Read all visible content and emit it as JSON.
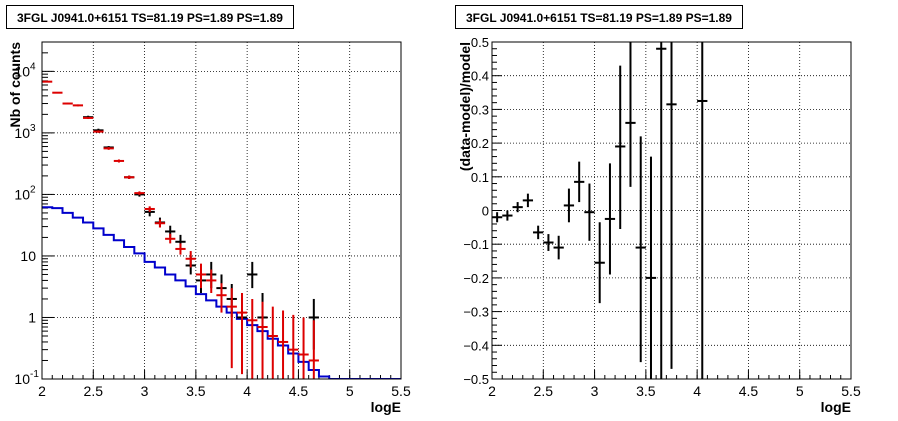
{
  "chart_data": [
    {
      "type": "line",
      "title": "3FGL J0941.0+6151 TS=81.19 PS=1.89 PS=1.89",
      "xlabel": "logE",
      "ylabel": "Nb of counts",
      "xlim": [
        2,
        5.5
      ],
      "ylim": [
        0.1,
        30000
      ],
      "yscale": "log",
      "grid": true,
      "x_ticks": [
        "2",
        "2.5",
        "3",
        "3.5",
        "4",
        "4.5",
        "5",
        "5.5"
      ],
      "y_ticks": [
        {
          "v": 0.1,
          "t": "10",
          "e": "-1"
        },
        {
          "v": 1,
          "t": "1",
          "e": ""
        },
        {
          "v": 10,
          "t": "10",
          "e": ""
        },
        {
          "v": 100,
          "t": "10",
          "e": "2"
        },
        {
          "v": 1000,
          "t": "10",
          "e": "3"
        },
        {
          "v": 10000,
          "t": "10",
          "e": "4"
        }
      ],
      "series": [
        {
          "color": "#0000cc",
          "kind": "step",
          "edges": [
            2.0,
            2.1,
            2.2,
            2.3,
            2.4,
            2.5,
            2.6,
            2.7,
            2.8,
            2.9,
            3.0,
            3.1,
            3.2,
            3.3,
            3.4,
            3.5,
            3.6,
            3.7,
            3.8,
            3.9,
            4.0,
            4.1,
            4.2,
            4.3,
            4.4,
            4.5,
            4.6,
            4.7,
            4.8,
            4.9,
            5.0,
            5.1,
            5.2,
            5.3,
            5.4,
            5.5
          ],
          "values": [
            62,
            60,
            50,
            42,
            35,
            28,
            22,
            18,
            14,
            11,
            8,
            6.5,
            5,
            4,
            3.2,
            2.4,
            1.9,
            1.5,
            1.2,
            0.95,
            0.75,
            0.6,
            0.45,
            0.35,
            0.26,
            0.19,
            0.14,
            0.11,
            0.1,
            0.1,
            0.1,
            0.1,
            0.1,
            0.1,
            0.1
          ]
        },
        {
          "color": "#000000",
          "kind": "errorbar",
          "points": [
            [
              2.45,
              1800,
              1700,
              1900
            ],
            [
              2.55,
              1100,
              1030,
              1170
            ],
            [
              2.65,
              580,
              550,
              610
            ],
            [
              2.85,
              190,
              178,
              202
            ],
            [
              2.95,
              100,
              92,
              108
            ],
            [
              3.05,
              52,
              44,
              61
            ],
            [
              3.15,
              35,
              29,
              42
            ],
            [
              3.25,
              25,
              20,
              31
            ],
            [
              3.35,
              17,
              13,
              22
            ],
            [
              3.45,
              7,
              5,
              10
            ],
            [
              3.55,
              4,
              2.5,
              6
            ],
            [
              3.65,
              5,
              3,
              8
            ],
            [
              3.75,
              3,
              1.7,
              5
            ],
            [
              3.85,
              2,
              1,
              3.5
            ],
            [
              3.95,
              1,
              0.3,
              2.5
            ],
            [
              4.05,
              5,
              3,
              8
            ],
            [
              4.15,
              1,
              0.3,
              2.5
            ],
            [
              4.65,
              1,
              0.3,
              2
            ]
          ]
        },
        {
          "color": "#dd0000",
          "kind": "errorbar",
          "points": [
            [
              2.05,
              6800,
              6600,
              7000
            ],
            [
              2.15,
              4500,
              4380,
              4620
            ],
            [
              2.25,
              3000,
              2900,
              3100
            ],
            [
              2.35,
              2800,
              2700,
              2900
            ],
            [
              2.45,
              1750,
              1680,
              1820
            ],
            [
              2.55,
              1050,
              1000,
              1100
            ],
            [
              2.65,
              560,
              530,
              590
            ],
            [
              2.75,
              350,
              330,
              370
            ],
            [
              2.85,
              190,
              178,
              202
            ],
            [
              2.95,
              105,
              98,
              112
            ],
            [
              3.05,
              58,
              52,
              64
            ],
            [
              3.15,
              34,
              29,
              39
            ],
            [
              3.25,
              19,
              16,
              23
            ],
            [
              3.35,
              13,
              10.5,
              16
            ],
            [
              3.45,
              9,
              6.5,
              12
            ],
            [
              3.55,
              5,
              3,
              7.5
            ],
            [
              3.65,
              4,
              2.5,
              6
            ],
            [
              3.75,
              2.3,
              1.2,
              3.6
            ],
            [
              3.85,
              1.5,
              0.15,
              3
            ],
            [
              3.95,
              1.2,
              0.12,
              2.5
            ],
            [
              4.05,
              0.9,
              0.1,
              2
            ],
            [
              4.15,
              0.7,
              0.1,
              1.8
            ],
            [
              4.25,
              0.5,
              0.1,
              1.5
            ],
            [
              4.35,
              0.4,
              0.1,
              1.3
            ],
            [
              4.45,
              0.3,
              0.1,
              1.1
            ],
            [
              4.55,
              0.25,
              0.1,
              1
            ],
            [
              4.65,
              0.2,
              0.1,
              0.9
            ]
          ]
        }
      ]
    },
    {
      "type": "scatter",
      "title": "3FGL J0941.0+6151 TS=81.19 PS=1.89 PS=1.89",
      "xlabel": "logE",
      "ylabel": "(data-model)/model",
      "xlim": [
        2,
        5.5
      ],
      "ylim": [
        -0.5,
        0.5
      ],
      "grid": true,
      "x_ticks": [
        "2",
        "2.5",
        "3",
        "3.5",
        "4",
        "4.5",
        "5",
        "5.5"
      ],
      "y_ticks": [
        "−0.5",
        "−0.4",
        "−0.3",
        "−0.2",
        "−0.1",
        "0",
        "0.1",
        "0.2",
        "0.3",
        "0.4",
        "0.5"
      ],
      "series": [
        {
          "color": "#000000",
          "kind": "errorbar",
          "points": [
            [
              2.05,
              -0.02,
              -0.035,
              -0.005
            ],
            [
              2.15,
              -0.015,
              -0.03,
              0
            ],
            [
              2.25,
              0.01,
              -0.005,
              0.025
            ],
            [
              2.35,
              0.03,
              0.01,
              0.05
            ],
            [
              2.45,
              -0.065,
              -0.085,
              -0.045
            ],
            [
              2.55,
              -0.095,
              -0.12,
              -0.07
            ],
            [
              2.65,
              -0.11,
              -0.145,
              -0.075
            ],
            [
              2.75,
              0.015,
              -0.035,
              0.065
            ],
            [
              2.85,
              0.085,
              0.025,
              0.145
            ],
            [
              2.95,
              -0.005,
              -0.09,
              0.08
            ],
            [
              3.05,
              -0.155,
              -0.275,
              -0.035
            ],
            [
              3.15,
              -0.025,
              -0.19,
              0.14
            ],
            [
              3.25,
              0.19,
              -0.055,
              0.43
            ],
            [
              3.35,
              0.26,
              0.07,
              0.5
            ],
            [
              3.45,
              -0.11,
              -0.45,
              0.22
            ],
            [
              3.55,
              -0.2,
              -0.5,
              0.16
            ],
            [
              3.65,
              0.48,
              -0.5,
              0.5
            ],
            [
              3.75,
              0.315,
              -0.47,
              0.5
            ],
            [
              4.05,
              0.325,
              -0.5,
              0.5
            ]
          ]
        }
      ]
    }
  ]
}
